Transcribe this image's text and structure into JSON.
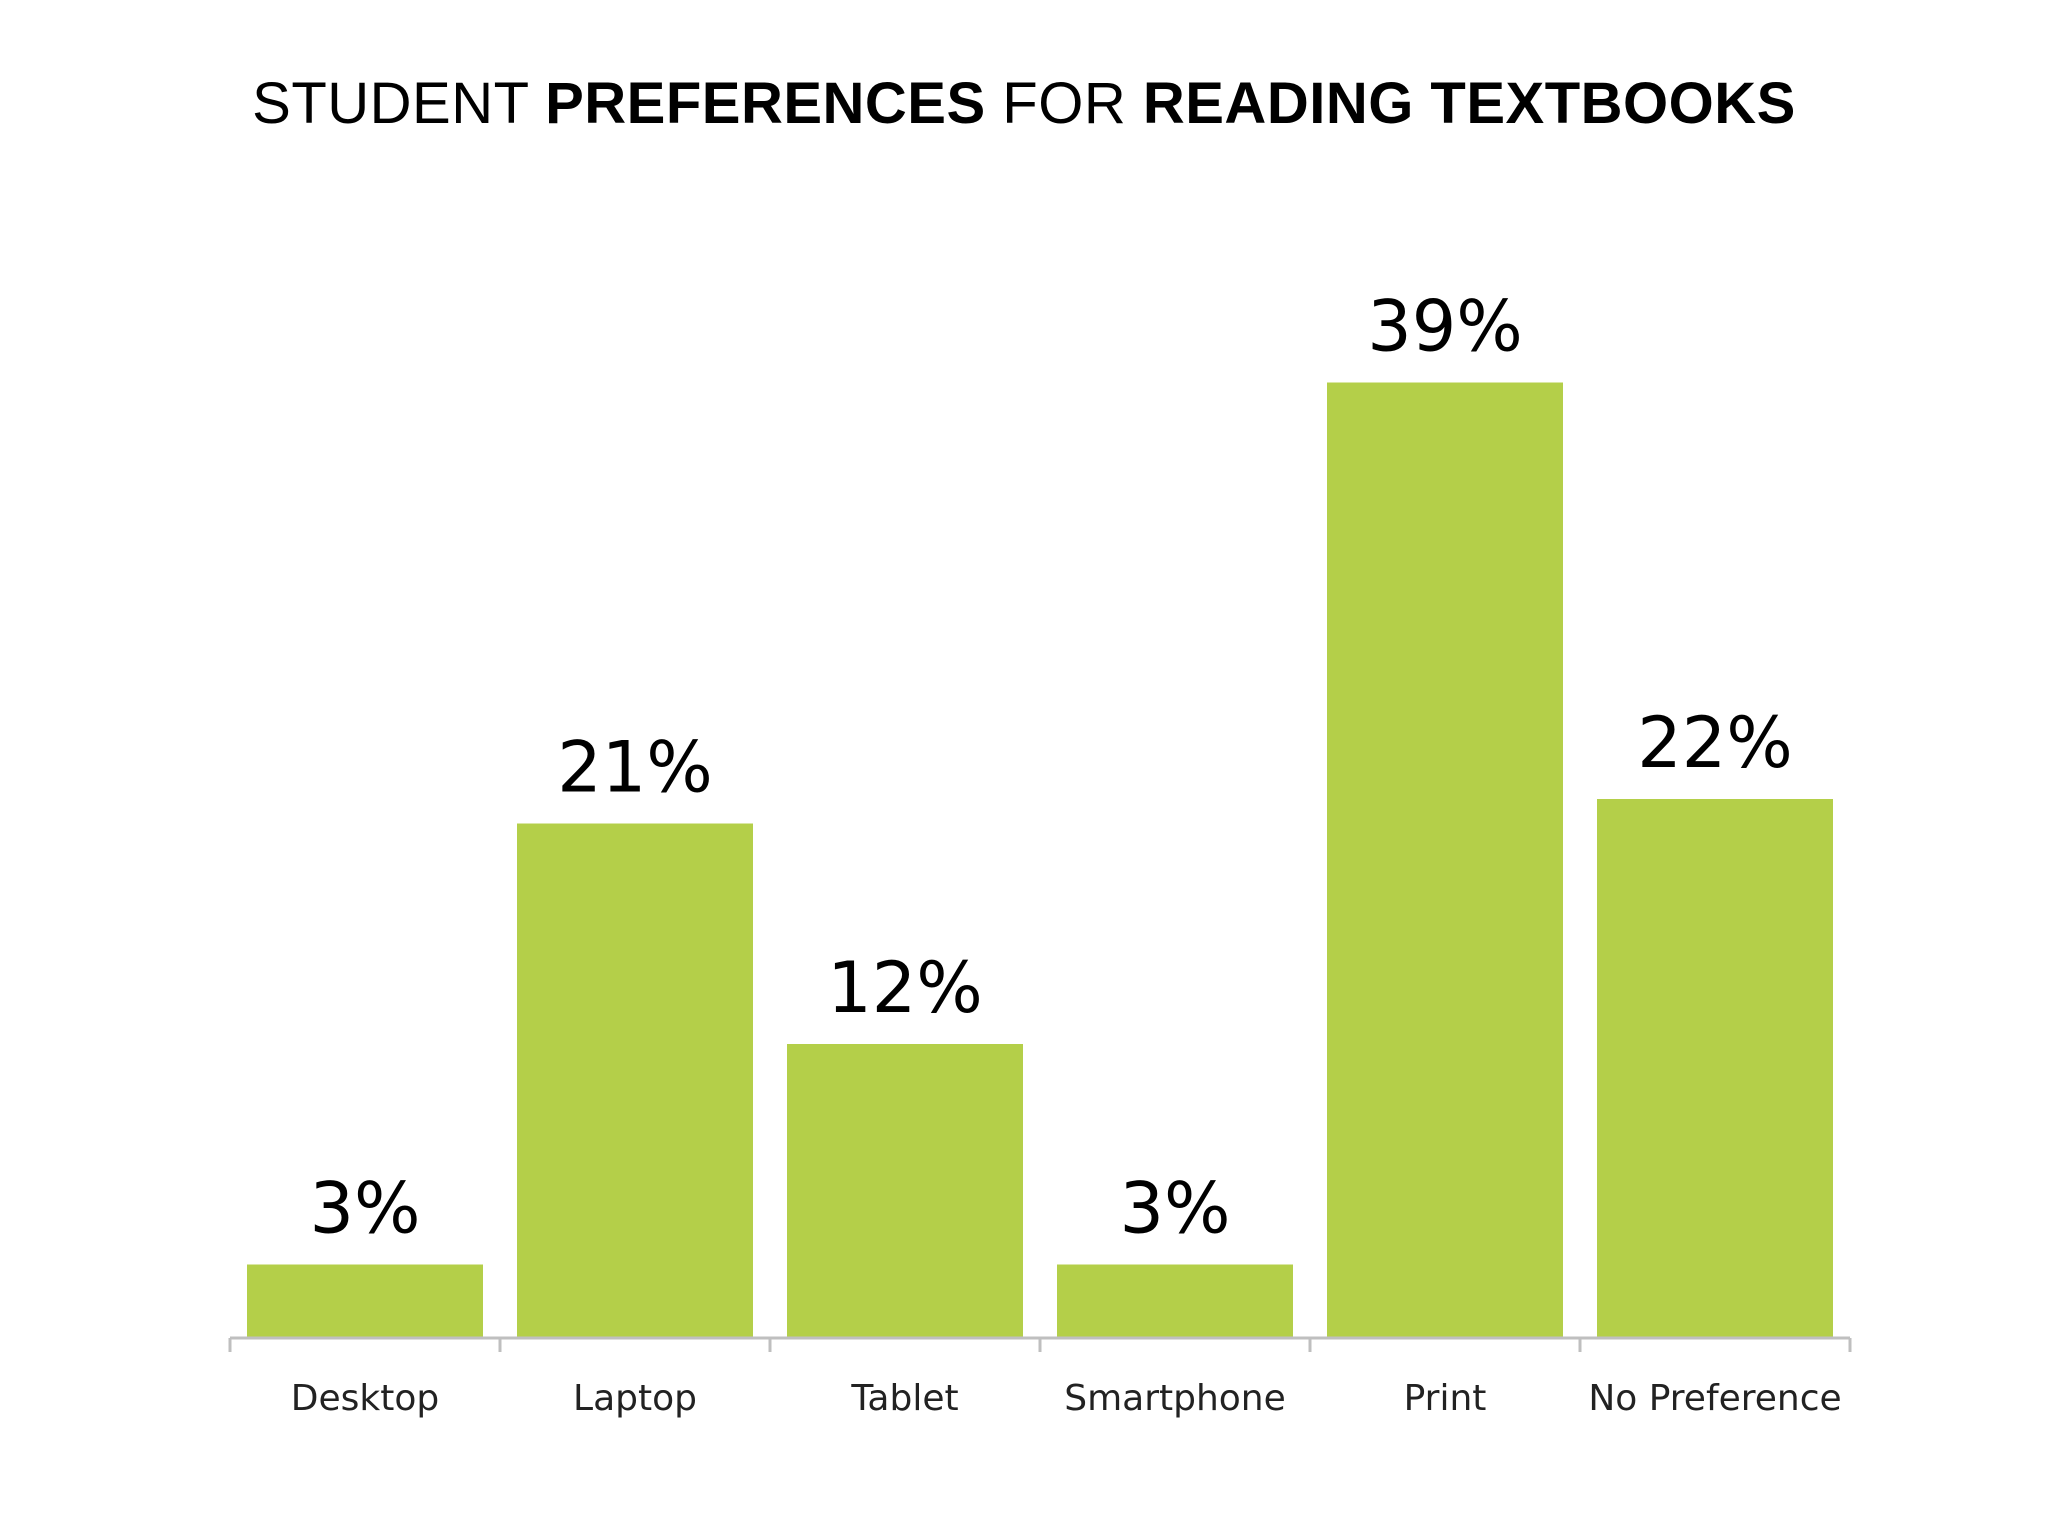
{
  "title_parts": [
    {
      "text": "STUDENT ",
      "bold": false
    },
    {
      "text": "PREFERENCES",
      "bold": true
    },
    {
      "text": " FOR ",
      "bold": false
    },
    {
      "text": "READING TEXTBOOKS",
      "bold": true
    }
  ],
  "colors": {
    "bar": "#b4cf49",
    "axis": "#bfbfbf",
    "text": "#000000"
  },
  "chart_data": {
    "type": "bar",
    "title": "STUDENT PREFERENCES FOR READING TEXTBOOKS",
    "xlabel": "",
    "ylabel": "",
    "categories": [
      "Desktop",
      "Laptop",
      "Tablet",
      "Smartphone",
      "Print",
      "No Preference"
    ],
    "values": [
      3,
      21,
      12,
      3,
      39,
      22
    ],
    "data_labels": [
      "3%",
      "21%",
      "12%",
      "3%",
      "39%",
      "22%"
    ],
    "unit": "%",
    "ylim": [
      0,
      42
    ],
    "grid": false,
    "legend": "none"
  }
}
